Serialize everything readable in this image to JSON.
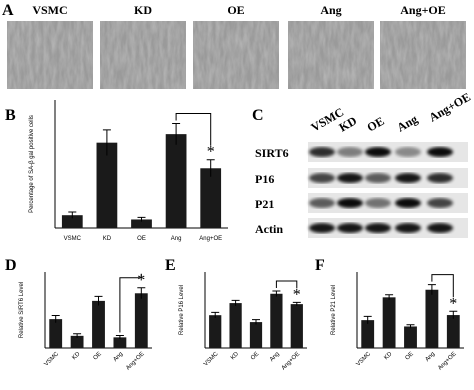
{
  "panel_a": {
    "letter": "A",
    "labels": [
      "VSMC",
      "KD",
      "OE",
      "Ang",
      "Ang+OE"
    ]
  },
  "panel_c": {
    "letter": "C",
    "columns": [
      "VSMC",
      "KD",
      "OE",
      "Ang",
      "Ang+OE"
    ],
    "rows": [
      "SIRT6",
      "P16",
      "P21",
      "Actin"
    ]
  },
  "chart_data": [
    {
      "type": "bar",
      "letter": "B",
      "y_label": "Percentage of SA-β gal positive cells",
      "categories": [
        "VSMC",
        "KD",
        "OE",
        "Ang",
        "Ang+OE"
      ],
      "values": [
        6,
        40,
        4,
        44,
        28
      ],
      "errors": [
        1.5,
        6,
        1,
        5,
        4
      ],
      "ylim": [
        0,
        60
      ],
      "color": "#1a1a1a",
      "annotation": "*"
    },
    {
      "type": "bar",
      "letter": "D",
      "y_label": "Relative SIRT6 Level",
      "categories": [
        "VSMC",
        "KD",
        "OE",
        "Ang",
        "Ang+OE"
      ],
      "values": [
        0.95,
        0.4,
        1.55,
        0.35,
        1.8
      ],
      "errors": [
        0.12,
        0.07,
        0.15,
        0.06,
        0.18
      ],
      "ylim": [
        0,
        2.5
      ],
      "color": "#1a1a1a",
      "annotation": "*"
    },
    {
      "type": "bar",
      "letter": "E",
      "y_label": "Relative P16 Level",
      "categories": [
        "VSMC",
        "KD",
        "OE",
        "Ang",
        "Ang+OE"
      ],
      "values": [
        0.95,
        1.3,
        0.75,
        1.57,
        1.27
      ],
      "errors": [
        0.08,
        0.08,
        0.07,
        0.08,
        0.05
      ],
      "ylim": [
        0,
        2.2
      ],
      "color": "#1a1a1a",
      "annotation": "*"
    },
    {
      "type": "bar",
      "letter": "F",
      "y_label": "Relative P21 Level",
      "categories": [
        "VSMC",
        "KD",
        "OE",
        "Ang",
        "Ang+OE"
      ],
      "values": [
        1.1,
        2.0,
        0.85,
        2.3,
        1.3
      ],
      "errors": [
        0.15,
        0.1,
        0.07,
        0.2,
        0.15
      ],
      "ylim": [
        0,
        3.0
      ],
      "color": "#1a1a1a",
      "annotation": "*"
    }
  ]
}
